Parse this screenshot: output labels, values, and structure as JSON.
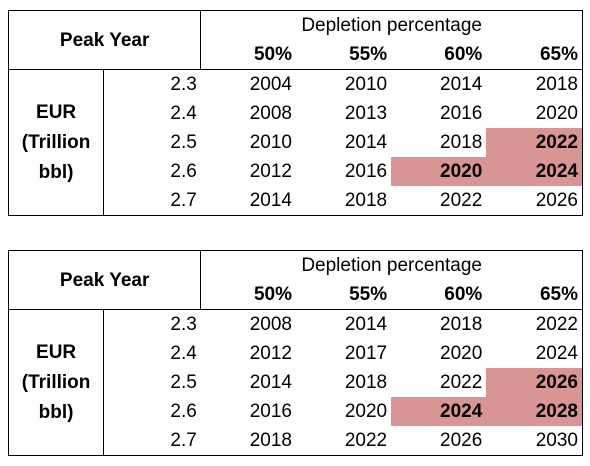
{
  "tables": [
    {
      "peak_label": "Peak Year",
      "depletion_label": "Depletion percentage",
      "columns": [
        "50%",
        "55%",
        "60%",
        "65%"
      ],
      "eur_label": [
        "EUR",
        "(Trillion",
        "bbl)"
      ],
      "rows": [
        {
          "eur": "2.3",
          "values": [
            "2004",
            "2010",
            "2014",
            "2018"
          ]
        },
        {
          "eur": "2.4",
          "values": [
            "2008",
            "2013",
            "2016",
            "2020"
          ]
        },
        {
          "eur": "2.5",
          "values": [
            "2010",
            "2014",
            "2018",
            "2022"
          ]
        },
        {
          "eur": "2.6",
          "values": [
            "2012",
            "2016",
            "2020",
            "2024"
          ]
        },
        {
          "eur": "2.7",
          "values": [
            "2014",
            "2018",
            "2022",
            "2026"
          ]
        }
      ],
      "highlighted": [
        [
          2,
          3
        ],
        [
          3,
          2
        ],
        [
          3,
          3
        ]
      ],
      "highlight_color": "#d99594"
    },
    {
      "peak_label": "Peak Year",
      "depletion_label": "Depletion percentage",
      "columns": [
        "50%",
        "55%",
        "60%",
        "65%"
      ],
      "eur_label": [
        "EUR",
        "(Trillion",
        "bbl)"
      ],
      "rows": [
        {
          "eur": "2.3",
          "values": [
            "2008",
            "2014",
            "2018",
            "2022"
          ]
        },
        {
          "eur": "2.4",
          "values": [
            "2012",
            "2017",
            "2020",
            "2024"
          ]
        },
        {
          "eur": "2.5",
          "values": [
            "2014",
            "2018",
            "2022",
            "2026"
          ]
        },
        {
          "eur": "2.6",
          "values": [
            "2016",
            "2020",
            "2024",
            "2028"
          ]
        },
        {
          "eur": "2.7",
          "values": [
            "2018",
            "2022",
            "2026",
            "2030"
          ]
        }
      ],
      "highlighted": [
        [
          2,
          3
        ],
        [
          3,
          2
        ],
        [
          3,
          3
        ]
      ],
      "highlight_color": "#d99594"
    }
  ]
}
